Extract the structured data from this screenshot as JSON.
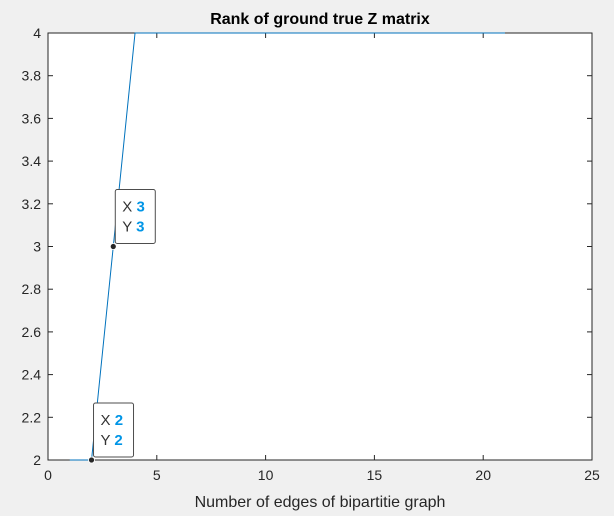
{
  "chart_data": {
    "type": "line",
    "title": "Rank of ground true Z matrix",
    "xlabel": "Number of edges of bipartitie graph",
    "ylabel": "",
    "xlim": [
      0,
      25
    ],
    "ylim": [
      2,
      4
    ],
    "xticks": [
      0,
      5,
      10,
      15,
      20,
      25
    ],
    "yticks": [
      2,
      2.2,
      2.4,
      2.6,
      2.8,
      3,
      3.2,
      3.4,
      3.6,
      3.8,
      4
    ],
    "grid": false,
    "series": [
      {
        "x": [
          1,
          2,
          3,
          4,
          5,
          6,
          7,
          8,
          9,
          10,
          11,
          12,
          13,
          14,
          15,
          16,
          17,
          18,
          19,
          20,
          21
        ],
        "y": [
          2,
          2,
          3,
          4,
          4,
          4,
          4,
          4,
          4,
          4,
          4,
          4,
          4,
          4,
          4,
          4,
          4,
          4,
          4,
          4,
          4
        ],
        "color": "#0072bd"
      }
    ],
    "datatips": [
      {
        "x_label": "X",
        "y_label": "Y",
        "x": 3,
        "y": 3
      },
      {
        "x_label": "X",
        "y_label": "Y",
        "x": 2,
        "y": 2
      }
    ],
    "datatip_value_color": "#0095e6"
  }
}
